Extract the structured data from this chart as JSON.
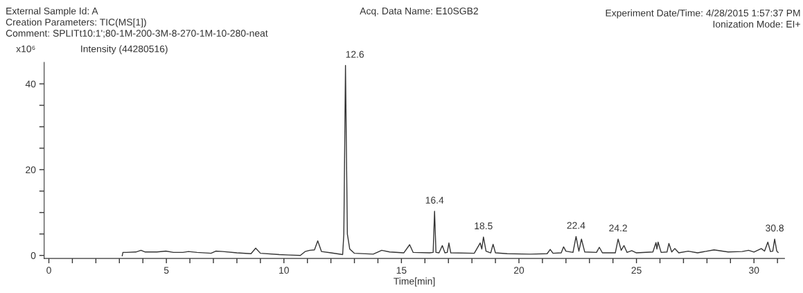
{
  "chart_data": {
    "type": "line",
    "xlabel": "Time[min]",
    "ylabel": "Intensity (44280516)",
    "annotations": [
      "External Sample Id: A",
      "Creation Parameters: TIC(MS[1])",
      "Comment: SPLITt10:1';80-1M-200-3M-8-270-1M-10-280-neat",
      "Acq. Data Name: E10SGB2",
      "Experiment Date/Time: 4/28/2015 1:57:37 PM",
      "Ionization Mode: EI+",
      "x10⁶",
      {
        "text": "12.6",
        "x": 12.62,
        "y": 44.3
      },
      {
        "text": "16.4",
        "x": 16.41,
        "y": 10.3
      },
      {
        "text": "18.5",
        "x": 18.49,
        "y": 4.3
      },
      {
        "text": "22.4",
        "x": 22.43,
        "y": 4.4
      },
      {
        "text": "24.2",
        "x": 24.22,
        "y": 3.8
      },
      {
        "text": "30.8",
        "x": 30.88,
        "y": 3.8
      }
    ],
    "series": [
      {
        "color": "#333333",
        "x": [
          3.12,
          3.15,
          3.3,
          3.7,
          3.92,
          4.1,
          4.6,
          4.98,
          5.3,
          5.7,
          5.94,
          6.3,
          6.9,
          7.1,
          7.4,
          8.0,
          8.6,
          8.8,
          9.0,
          9.8,
          10.2,
          10.7,
          10.9,
          11.1,
          11.3,
          11.44,
          11.6,
          12.0,
          12.5,
          12.55,
          12.62,
          12.7,
          12.8,
          13.0,
          13.8,
          14.0,
          14.16,
          14.5,
          15.1,
          15.35,
          15.5,
          16.2,
          16.35,
          16.41,
          16.47,
          16.6,
          16.74,
          16.85,
          16.95,
          17.02,
          17.1,
          18.1,
          18.35,
          18.42,
          18.49,
          18.6,
          18.8,
          18.9,
          19.0,
          19.5,
          20.5,
          21.2,
          21.33,
          21.45,
          21.8,
          21.9,
          22.0,
          22.3,
          22.43,
          22.55,
          22.66,
          22.8,
          23.3,
          23.42,
          23.55,
          24.1,
          24.22,
          24.35,
          24.47,
          24.6,
          24.8,
          25.0,
          25.7,
          25.83,
          25.87,
          25.92,
          26.05,
          26.3,
          26.38,
          26.5,
          26.63,
          26.8,
          27.2,
          27.6,
          28.3,
          28.9,
          29.5,
          29.77,
          30.0,
          30.31,
          30.45,
          30.59,
          30.7,
          30.8,
          30.88,
          30.97,
          31.03
        ],
        "values": [
          -0.1,
          0.7,
          0.7,
          0.8,
          1.2,
          0.8,
          0.8,
          1.0,
          0.7,
          0.7,
          0.9,
          0.7,
          0.5,
          1.0,
          0.9,
          0.6,
          0.4,
          1.7,
          0.5,
          0.2,
          0.1,
          0.0,
          0.9,
          1.2,
          1.3,
          3.4,
          0.9,
          0.6,
          0.2,
          5.0,
          44.3,
          5.0,
          1.5,
          0.5,
          0.3,
          0.8,
          1.2,
          0.8,
          0.6,
          2.5,
          0.7,
          0.6,
          0.7,
          10.3,
          0.7,
          0.6,
          2.3,
          0.6,
          0.7,
          2.9,
          0.6,
          0.5,
          2.9,
          1.5,
          4.3,
          1.0,
          0.6,
          2.6,
          0.6,
          0.4,
          0.3,
          0.4,
          1.4,
          0.5,
          0.6,
          2.0,
          1.0,
          0.7,
          4.4,
          1.0,
          3.8,
          0.8,
          0.7,
          1.9,
          0.6,
          0.6,
          3.8,
          1.2,
          2.3,
          0.7,
          1.1,
          0.6,
          0.8,
          3.0,
          1.5,
          3.1,
          0.7,
          0.8,
          2.8,
          0.8,
          1.6,
          0.6,
          1.0,
          0.6,
          1.3,
          0.8,
          0.9,
          1.2,
          0.8,
          1.6,
          1.0,
          3.1,
          0.9,
          1.0,
          3.8,
          1.0,
          0.7
        ]
      }
    ],
    "xlim": [
      -0.2,
      31.3
    ],
    "ylim": [
      -0.7,
      45
    ],
    "xticks": [
      0,
      {
        "value": 1,
        "label": null
      },
      {
        "value": 2,
        "label": null
      },
      {
        "value": 3,
        "label": null
      },
      {
        "value": 4,
        "label": null
      },
      5,
      {
        "value": 6,
        "label": null
      },
      {
        "value": 7,
        "label": null
      },
      {
        "value": 8,
        "label": null
      },
      {
        "value": 9,
        "label": null
      },
      10,
      {
        "value": 11,
        "label": null
      },
      {
        "value": 12,
        "label": null
      },
      {
        "value": 13,
        "label": null
      },
      {
        "value": 14,
        "label": null
      },
      15,
      {
        "value": 16,
        "label": null
      },
      {
        "value": 17,
        "label": null
      },
      {
        "value": 18,
        "label": null
      },
      {
        "value": 19,
        "label": null
      },
      20,
      {
        "value": 21,
        "label": null
      },
      {
        "value": 22,
        "label": null
      },
      {
        "value": 23,
        "label": null
      },
      {
        "value": 24,
        "label": null
      },
      25,
      {
        "value": 26,
        "label": null
      },
      {
        "value": 27,
        "label": null
      },
      {
        "value": 28,
        "label": null
      },
      {
        "value": 29,
        "label": null
      },
      30,
      {
        "value": 31,
        "label": null
      }
    ],
    "yticks": [
      0,
      {
        "value": 5,
        "label": null
      },
      {
        "value": 10,
        "label": null
      },
      {
        "value": 15,
        "label": null
      },
      20,
      {
        "value": 25,
        "label": null
      },
      {
        "value": 30,
        "label": null
      },
      {
        "value": 35,
        "label": null
      },
      40
    ],
    "grid": false,
    "legend": false
  }
}
